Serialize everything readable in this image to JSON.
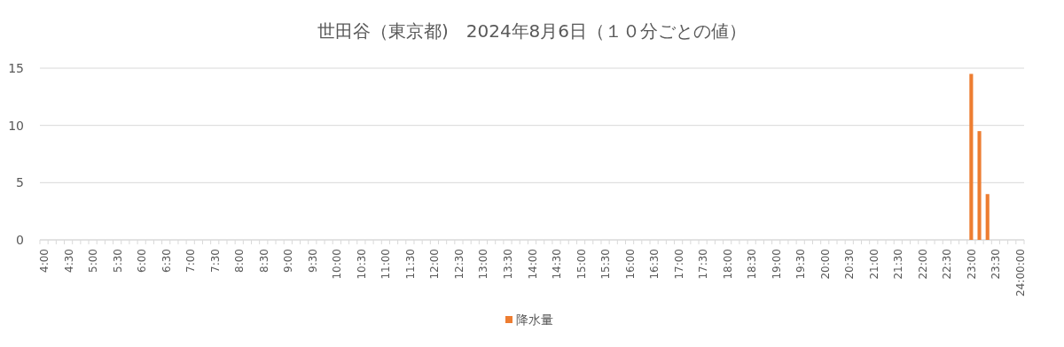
{
  "chart_data": {
    "type": "bar",
    "title": "世田谷（東京都)　2024年8月6日（１０分ごとの値）",
    "categories": [
      "4:00",
      null,
      null,
      "4:30",
      null,
      null,
      "5:00",
      null,
      null,
      "5:30",
      null,
      null,
      "6:00",
      null,
      null,
      "6:30",
      null,
      null,
      "7:00",
      null,
      null,
      "7:30",
      null,
      null,
      "8:00",
      null,
      null,
      "8:30",
      null,
      null,
      "9:00",
      null,
      null,
      "9:30",
      null,
      null,
      "10:00",
      null,
      null,
      "10:30",
      null,
      null,
      "11:00",
      null,
      null,
      "11:30",
      null,
      null,
      "12:00",
      null,
      null,
      "12:30",
      null,
      null,
      "13:00",
      null,
      null,
      "13:30",
      null,
      null,
      "14:00",
      null,
      null,
      "14:30",
      null,
      null,
      "15:00",
      null,
      null,
      "15:30",
      null,
      null,
      "16:00",
      null,
      null,
      "16:30",
      null,
      null,
      "17:00",
      null,
      null,
      "17:30",
      null,
      null,
      "18:00",
      null,
      null,
      "18:30",
      null,
      null,
      "19:00",
      null,
      null,
      "19:30",
      null,
      null,
      "20:00",
      null,
      null,
      "20:30",
      null,
      null,
      "21:00",
      null,
      null,
      "21:30",
      null,
      null,
      "22:00",
      null,
      null,
      "22:30",
      null,
      null,
      "23:00",
      null,
      null,
      "23:30",
      null,
      null,
      "24:00:00"
    ],
    "series": [
      {
        "name": "降水量",
        "color": "#ed7d31",
        "values": [
          0,
          0,
          0,
          0,
          0,
          0,
          0,
          0,
          0,
          0,
          0,
          0,
          0,
          0,
          0,
          0,
          0,
          0,
          0,
          0,
          0,
          0,
          0,
          0,
          0,
          0,
          0,
          0,
          0,
          0,
          0,
          0,
          0,
          0,
          0,
          0,
          0,
          0,
          0,
          0,
          0,
          0,
          0,
          0,
          0,
          0,
          0,
          0,
          0,
          0,
          0,
          0,
          0,
          0,
          0,
          0,
          0,
          0,
          0,
          0,
          0,
          0,
          0,
          0,
          0,
          0,
          0,
          0,
          0,
          0,
          0,
          0,
          0,
          0,
          0,
          0,
          0,
          0,
          0,
          0,
          0,
          0,
          0,
          0,
          0,
          0,
          0,
          0,
          0,
          0,
          0,
          0,
          0,
          0,
          0,
          0,
          0,
          0,
          0,
          0,
          0,
          0,
          0,
          0,
          0,
          0,
          0,
          0,
          0,
          0,
          0,
          0,
          0,
          0,
          14.5,
          9.5,
          4,
          0,
          0,
          0,
          0
        ]
      }
    ],
    "ylim": [
      0,
      15
    ],
    "yticks": [
      0,
      5,
      10,
      15
    ],
    "grid": "y",
    "legend": "bottom"
  }
}
